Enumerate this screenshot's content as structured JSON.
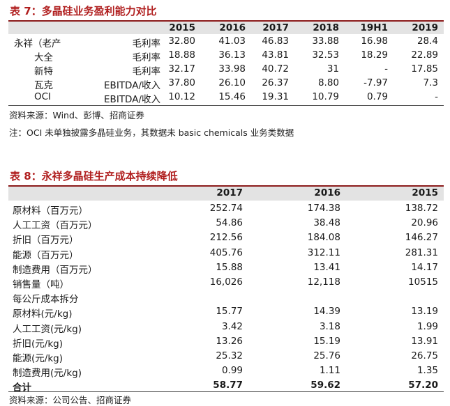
{
  "table7": {
    "title": "表 7：多晶硅业务盈利能力对比",
    "columns": [
      "2015",
      "2016",
      "2017",
      "2018",
      "19H1",
      "2019"
    ],
    "rows": [
      {
        "company": "永祥（老产",
        "metric": "毛利率",
        "values": [
          "32.80",
          "41.03",
          "46.83",
          "33.88",
          "16.98",
          "28.4"
        ]
      },
      {
        "company": "大全",
        "metric": "毛利率",
        "values": [
          "18.88",
          "36.13",
          "43.81",
          "32.53",
          "18.29",
          "22.89"
        ]
      },
      {
        "company": "新特",
        "metric": "毛利率",
        "values": [
          "32.17",
          "33.98",
          "40.72",
          "31",
          "-",
          "17.85"
        ]
      },
      {
        "company": "瓦克",
        "metric": "EBITDA/收入",
        "values": [
          "37.80",
          "26.10",
          "26.37",
          "8.80",
          "-7.97",
          "7.3"
        ]
      },
      {
        "company": "OCI",
        "metric": "EBITDA/收入",
        "values": [
          "10.12",
          "15.46",
          "19.31",
          "10.79",
          "0.79",
          "-"
        ]
      }
    ],
    "source": "资料来源：Wind、彭博、招商证券",
    "note": "注：OCI 未单独披露多晶硅业务，其数据未 basic chemicals 业务类数据"
  },
  "table8": {
    "title": "表 8：永祥多晶硅生产成本持续降低",
    "columns": [
      "2017",
      "2016",
      "2015"
    ],
    "rows": [
      {
        "label": "原材料（百万元）",
        "values": [
          "252.74",
          "174.38",
          "138.72"
        ]
      },
      {
        "label": "人工工资（百万元）",
        "values": [
          "54.86",
          "38.48",
          "20.96"
        ]
      },
      {
        "label": "折旧（百万元）",
        "values": [
          "212.56",
          "184.08",
          "146.27"
        ]
      },
      {
        "label": "能源（百万元）",
        "values": [
          "405.76",
          "312.11",
          "281.31"
        ]
      },
      {
        "label": "制造费用（百万元）",
        "values": [
          "15.88",
          "13.41",
          "14.17"
        ]
      },
      {
        "label": "销售量（吨）",
        "values": [
          "16,026",
          "12,118",
          "10515"
        ]
      },
      {
        "label": "每公斤成本拆分",
        "values": [
          "",
          "",
          ""
        ]
      },
      {
        "label": "原材料(元/kg)",
        "values": [
          "15.77",
          "14.39",
          "13.19"
        ]
      },
      {
        "label": "人工工资(元/kg)",
        "values": [
          "3.42",
          "3.18",
          "1.99"
        ]
      },
      {
        "label": "折旧(元/kg)",
        "values": [
          "13.26",
          "15.19",
          "13.91"
        ]
      },
      {
        "label": "能源(元/kg)",
        "values": [
          "25.32",
          "25.76",
          "26.75"
        ]
      },
      {
        "label": "制造费用(元/kg)",
        "values": [
          "0.99",
          "1.11",
          "1.35"
        ]
      },
      {
        "label": "合计",
        "values": [
          "58.77",
          "59.62",
          "57.20"
        ],
        "bold": true
      }
    ],
    "source": "资料来源：公司公告、招商证券"
  },
  "colors": {
    "title": "#b01e1e",
    "rule": "#8b1a1a",
    "header_band": "#e3e3e3"
  }
}
